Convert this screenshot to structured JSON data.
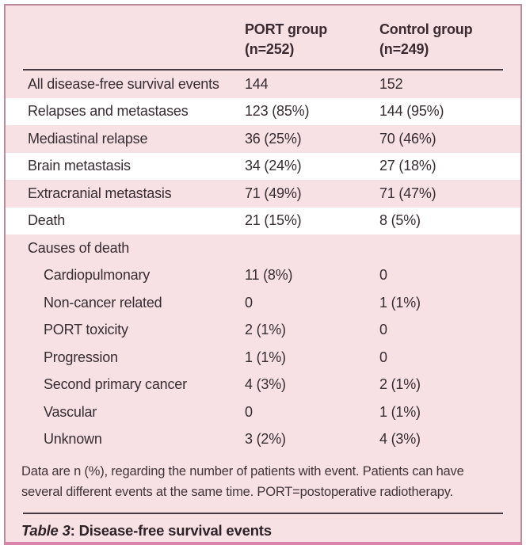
{
  "table": {
    "columns": [
      {
        "line1": "PORT group",
        "line2": "(n=252)"
      },
      {
        "line1": "Control group",
        "line2": "(n=249)"
      }
    ],
    "rows": [
      {
        "label": "All disease-free survival events",
        "port": "144",
        "control": "152",
        "highlight": false,
        "indent": false
      },
      {
        "label": "Relapses and metastases",
        "port": "123 (85%)",
        "control": "144 (95%)",
        "highlight": true,
        "indent": false
      },
      {
        "label": "Mediastinal relapse",
        "port": "36 (25%)",
        "control": "70 (46%)",
        "highlight": false,
        "indent": false
      },
      {
        "label": "Brain metastasis",
        "port": "34 (24%)",
        "control": "27 (18%)",
        "highlight": true,
        "indent": false
      },
      {
        "label": "Extracranial metastasis",
        "port": "71 (49%)",
        "control": "71 (47%)",
        "highlight": false,
        "indent": false
      },
      {
        "label": "Death",
        "port": "21 (15%)",
        "control": "8 (5%)",
        "highlight": true,
        "indent": false
      },
      {
        "label": "Causes of death",
        "port": "",
        "control": "",
        "highlight": false,
        "indent": false
      },
      {
        "label": "Cardiopulmonary",
        "port": "11 (8%)",
        "control": "0",
        "highlight": false,
        "indent": true
      },
      {
        "label": "Non-cancer related",
        "port": "0",
        "control": "1 (1%)",
        "highlight": false,
        "indent": true
      },
      {
        "label": "PORT toxicity",
        "port": "2 (1%)",
        "control": "0",
        "highlight": false,
        "indent": true
      },
      {
        "label": "Progression",
        "port": "1 (1%)",
        "control": "0",
        "highlight": false,
        "indent": true
      },
      {
        "label": "Second primary cancer",
        "port": "4 (3%)",
        "control": "2 (1%)",
        "highlight": false,
        "indent": true
      },
      {
        "label": "Vascular",
        "port": "0",
        "control": "1 (1%)",
        "highlight": false,
        "indent": true
      },
      {
        "label": "Unknown",
        "port": "3 (2%)",
        "control": "4 (3%)",
        "highlight": false,
        "indent": true
      }
    ],
    "footnote": "Data are n (%), regarding the number of patients with event. Patients can have several different events at the same time. PORT=postoperative radiotherapy.",
    "caption": {
      "prefix": "Table 3",
      "rest": ": Disease-free survival events"
    },
    "colors": {
      "background_pink": "#f7e1e4",
      "stripe_white": "#ffffff",
      "border_rose": "#bd8a9c",
      "border_bottom_pink": "#d983a8",
      "rule_dark": "#4a3840",
      "text_dark": "#372c32"
    }
  },
  "chart_data": {
    "type": "table",
    "title": "Table 3: Disease-free survival events",
    "columns": [
      "",
      "PORT group (n=252)",
      "Control group (n=249)"
    ],
    "rows": [
      [
        "All disease-free survival events",
        "144",
        "152"
      ],
      [
        "Relapses and metastases",
        "123 (85%)",
        "144 (95%)"
      ],
      [
        "Mediastinal relapse",
        "36 (25%)",
        "70 (46%)"
      ],
      [
        "Brain metastasis",
        "34 (24%)",
        "27 (18%)"
      ],
      [
        "Extracranial metastasis",
        "71 (49%)",
        "71 (47%)"
      ],
      [
        "Death",
        "21 (15%)",
        "8 (5%)"
      ],
      [
        "Causes of death",
        "",
        ""
      ],
      [
        "Cardiopulmonary",
        "11 (8%)",
        "0"
      ],
      [
        "Non-cancer related",
        "0",
        "1 (1%)"
      ],
      [
        "PORT toxicity",
        "2 (1%)",
        "0"
      ],
      [
        "Progression",
        "1 (1%)",
        "0"
      ],
      [
        "Second primary cancer",
        "4 (3%)",
        "2 (1%)"
      ],
      [
        "Vascular",
        "0",
        "1 (1%)"
      ],
      [
        "Unknown",
        "3 (2%)",
        "4 (3%)"
      ]
    ],
    "footnote": "Data are n (%), regarding the number of patients with event. Patients can have several different events at the same time. PORT=postoperative radiotherapy."
  }
}
